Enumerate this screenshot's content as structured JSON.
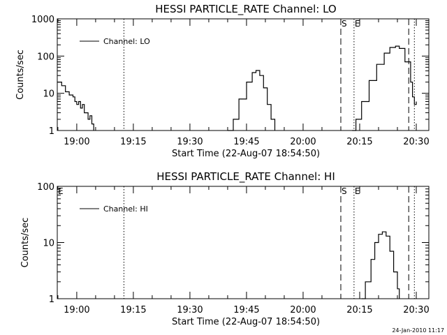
{
  "chart_data": [
    {
      "type": "line",
      "title": "HESSI PARTICLE_RATE Channel: LO",
      "xlabel": "Start Time (22-Aug-07 18:54:50)",
      "ylabel": "Counts/sec",
      "y_scale": "log",
      "ylim": [
        1,
        1000
      ],
      "xlim": [
        "18:54:50",
        "20:33:20"
      ],
      "x_ticks": [
        "19:00",
        "19:15",
        "19:30",
        "19:45",
        "20:00",
        "20:15",
        "20:30"
      ],
      "y_ticks": [
        "1",
        "10",
        "100",
        "1000"
      ],
      "legend": {
        "position": "top-left",
        "entries": [
          "Channel: LO"
        ]
      },
      "markers": [
        {
          "label": "S",
          "style": "dashed",
          "time": "20:10:00"
        },
        {
          "label": "E",
          "style": "dotted",
          "time": "20:13:30"
        }
      ],
      "extra_lines": [
        {
          "style": "dotted",
          "time": "19:12:30"
        },
        {
          "style": "dashed",
          "time": "20:28:00"
        },
        {
          "style": "dotted",
          "time": "20:29:30"
        }
      ],
      "series": [
        {
          "segments": [
            [
              [
                "18:54:50",
                20
              ],
              [
                "18:56:00",
                16
              ],
              [
                "18:57:00",
                11
              ],
              [
                "18:58:00",
                9
              ],
              [
                "18:59:00",
                8
              ],
              [
                "18:59:30",
                6
              ],
              [
                "19:00:00",
                5
              ],
              [
                "19:00:30",
                6
              ],
              [
                "19:01:00",
                4
              ],
              [
                "19:01:30",
                5
              ],
              [
                "19:02:00",
                3
              ],
              [
                "19:03:00",
                2
              ],
              [
                "19:03:30",
                2.5
              ],
              [
                "19:04:00",
                1.5
              ],
              [
                "19:04:30",
                1
              ]
            ],
            [
              [
                "19:40:00",
                1
              ],
              [
                "19:41:30",
                2
              ],
              [
                "19:43:00",
                7
              ],
              [
                "19:45:00",
                20
              ],
              [
                "19:46:30",
                36
              ],
              [
                "19:47:30",
                41
              ],
              [
                "19:48:30",
                30
              ],
              [
                "19:49:30",
                14
              ],
              [
                "19:50:30",
                5
              ],
              [
                "19:51:30",
                2
              ],
              [
                "19:52:30",
                1
              ]
            ],
            [
              [
                "20:13:00",
                1
              ],
              [
                "20:14:00",
                2
              ],
              [
                "20:15:30",
                6
              ],
              [
                "20:17:30",
                22
              ],
              [
                "20:19:30",
                60
              ],
              [
                "20:21:30",
                120
              ],
              [
                "20:23:00",
                170
              ],
              [
                "20:24:30",
                185
              ],
              [
                "20:25:30",
                160
              ],
              [
                "20:27:00",
                70
              ],
              [
                "20:28:30",
                20
              ],
              [
                "20:29:00",
                8
              ],
              [
                "20:29:30",
                5
              ],
              [
                "20:30:00",
                6
              ]
            ]
          ]
        }
      ]
    },
    {
      "type": "line",
      "title": "HESSI PARTICLE_RATE Channel: HI",
      "xlabel": "Start Time (22-Aug-07 18:54:50)",
      "ylabel": "Counts/sec",
      "y_scale": "log",
      "ylim": [
        1,
        100
      ],
      "xlim": [
        "18:54:50",
        "20:33:20"
      ],
      "x_ticks": [
        "19:00",
        "19:15",
        "19:30",
        "19:45",
        "20:00",
        "20:15",
        "20:30"
      ],
      "y_ticks": [
        "1",
        "10",
        "100"
      ],
      "legend": {
        "position": "top-left",
        "entries": [
          "Channel: HI"
        ]
      },
      "markers": [
        {
          "label": "E",
          "style": "none",
          "time": "18:54:50"
        },
        {
          "label": "S",
          "style": "dashed",
          "time": "20:10:00"
        },
        {
          "label": "E",
          "style": "dotted",
          "time": "20:13:30"
        }
      ],
      "extra_lines": [
        {
          "style": "dotted",
          "time": "19:12:30"
        },
        {
          "style": "dashed",
          "time": "20:28:00"
        },
        {
          "style": "dotted",
          "time": "20:29:30"
        }
      ],
      "series": [
        {
          "segments": [
            [
              [
                "20:15:30",
                1
              ],
              [
                "20:16:30",
                2
              ],
              [
                "20:18:00",
                5
              ],
              [
                "20:19:00",
                10
              ],
              [
                "20:20:00",
                14
              ],
              [
                "20:21:00",
                15.5
              ],
              [
                "20:22:00",
                13
              ],
              [
                "20:23:00",
                7
              ],
              [
                "20:24:00",
                3
              ],
              [
                "20:25:00",
                1.5
              ],
              [
                "20:25:30",
                1
              ]
            ]
          ]
        }
      ]
    }
  ],
  "footer": {
    "timestamp": "24-Jan-2010 11:17"
  }
}
